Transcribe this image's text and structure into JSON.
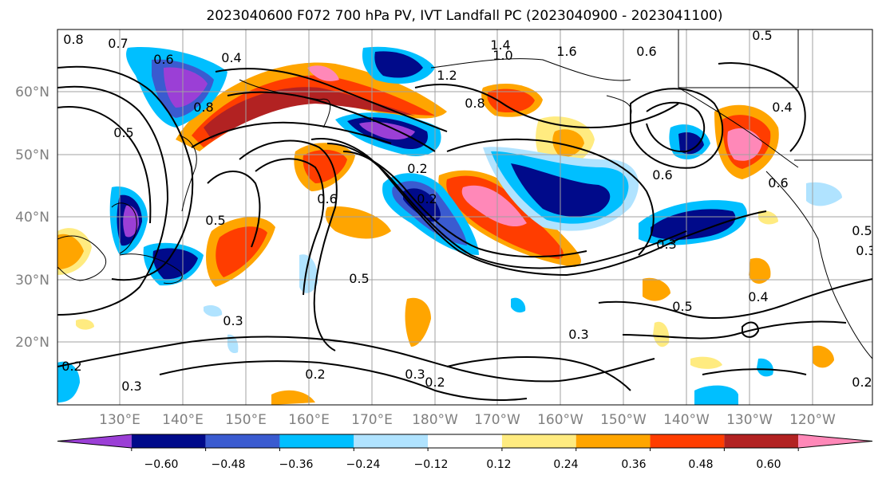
{
  "title": "2023040600 F072 700 hPa PV, IVT Landfall PC (2023040900 - 2023041100)",
  "map": {
    "lon_labels": [
      "130°E",
      "140°E",
      "150°E",
      "160°E",
      "170°E",
      "180°W",
      "170°W",
      "160°W",
      "150°W",
      "140°W",
      "130°W",
      "120°W"
    ],
    "lat_labels": [
      "60°N",
      "50°N",
      "40°N",
      "30°N",
      "20°N"
    ],
    "contour_labels": [
      "0.8",
      "0.7",
      "0.6",
      "0.4",
      "1.0",
      "1.4",
      "1.6",
      "1.2",
      "0.8",
      "0.6",
      "0.5",
      "0.5",
      "0.6",
      "0.5",
      "0.3",
      "0.5",
      "0.3",
      "0.2",
      "0.2",
      "0.3",
      "0.5",
      "0.2",
      "0.3",
      "0.4",
      "0.5",
      "0.4",
      "0.3",
      "0.2",
      "0.3",
      "0.2",
      "0.6",
      "0.8",
      "0.6",
      "0.2"
    ]
  },
  "colorbar": {
    "colors": [
      "#9b3fd6",
      "#000a8a",
      "#3a5bd0",
      "#00bfff",
      "#b0e3ff",
      "#ffffff",
      "#ffeb80",
      "#ffa500",
      "#ff3d00",
      "#b22222",
      "#ff88b8"
    ],
    "tick_labels": [
      "−0.60",
      "−0.48",
      "−0.36",
      "−0.24",
      "−0.12",
      "0.12",
      "0.24",
      "0.36",
      "0.48",
      "0.60"
    ]
  }
}
